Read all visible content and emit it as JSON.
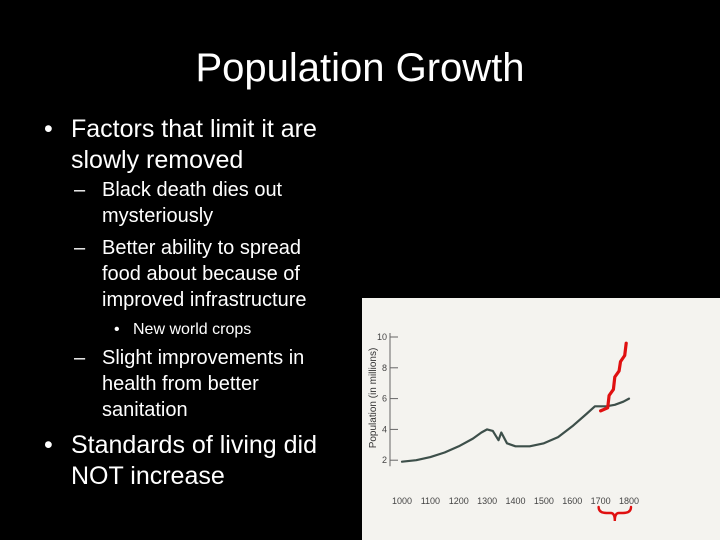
{
  "slide": {
    "title": "Population Growth",
    "bullets": [
      {
        "marker": "•",
        "line1": "Factors that limit it are",
        "line2": "slowly removed",
        "sub": [
          {
            "marker": "–",
            "line1": "Black death dies out",
            "line2": "mysteriously"
          },
          {
            "marker": "–",
            "line1": "Better ability to spread",
            "line2": "food about because of",
            "line3": "improved infrastructure"
          },
          {
            "marker": "•",
            "line1": "New world crops"
          },
          {
            "marker": "–",
            "line1": "Slight improvements in",
            "line2": "health from better",
            "line3": "sanitation"
          }
        ]
      },
      {
        "marker": "•",
        "line1": "Standards of living did",
        "line2": "NOT increase"
      }
    ]
  },
  "chart_data": {
    "type": "line",
    "title": "",
    "xlabel": "",
    "ylabel": "Population (in millions)",
    "xlim": [
      1000,
      1800
    ],
    "ylim": [
      0,
      10
    ],
    "x_ticks": [
      "1000",
      "1100",
      "1200",
      "1300",
      "1400",
      "1500",
      "1600",
      "1700",
      "1800"
    ],
    "y_ticks": [
      "2",
      "4",
      "6",
      "8",
      "10"
    ],
    "series": [
      {
        "color": "#3d4f4a",
        "x": [
          1000,
          1050,
          1100,
          1150,
          1200,
          1250,
          1280,
          1300,
          1320,
          1340,
          1350,
          1370,
          1400,
          1450,
          1500,
          1550,
          1600,
          1650,
          1680,
          1700,
          1720,
          1750,
          1780,
          1800
        ],
        "y": [
          1.9,
          2.0,
          2.2,
          2.5,
          2.9,
          3.4,
          3.8,
          4.0,
          3.9,
          3.3,
          3.8,
          3.1,
          2.9,
          2.9,
          3.1,
          3.5,
          4.2,
          5.0,
          5.5,
          5.5,
          5.5,
          5.6,
          5.8,
          6.0
        ]
      }
    ],
    "annotation": {
      "color": "#e01010",
      "x": [
        1700,
        1725,
        1730,
        1745,
        1750,
        1765,
        1770,
        1785,
        1790
      ],
      "y": [
        5.2,
        5.4,
        6.2,
        6.6,
        7.4,
        7.8,
        8.4,
        8.8,
        9.6
      ]
    }
  }
}
